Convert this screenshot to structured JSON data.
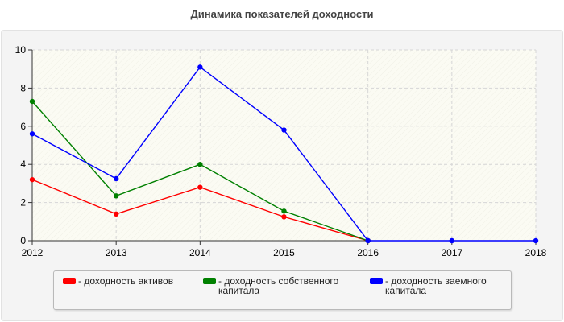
{
  "chart_data": {
    "type": "line",
    "title": "Динамика показателей доходности",
    "categories": [
      "2012",
      "2013",
      "2014",
      "2015",
      "2016",
      "2017",
      "2018"
    ],
    "ylim": [
      0,
      10
    ],
    "yticks": [
      "0",
      "2",
      "4",
      "6",
      "8",
      "10"
    ],
    "grid": true,
    "legend_position": "bottom",
    "series": [
      {
        "name": "- доходность активов",
        "color": "#ff0000",
        "values": [
          3.2,
          1.4,
          2.8,
          1.25,
          0,
          null,
          null
        ]
      },
      {
        "name": "- доходность собственного капитала",
        "color": "#008000",
        "values": [
          7.3,
          2.35,
          4.0,
          1.55,
          0,
          null,
          null
        ]
      },
      {
        "name": "- доходность заемного капитала",
        "color": "#0000ff",
        "values": [
          5.6,
          3.25,
          9.1,
          5.8,
          0,
          0,
          0
        ]
      }
    ]
  }
}
